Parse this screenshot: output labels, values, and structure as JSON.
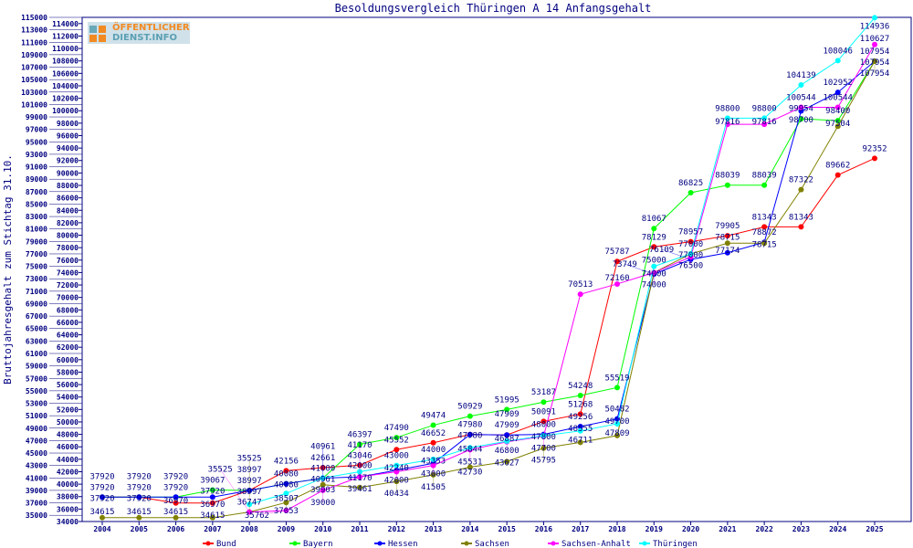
{
  "chart_data": {
    "type": "line",
    "title": "Besoldungsvergleich Thüringen A 14 Anfangsgehalt",
    "xlabel": "",
    "ylabel": "Bruttojahresgehalt zum Stichtag 31.10.",
    "ylim": [
      34000,
      115000
    ],
    "ytick_step": 1000,
    "grid": false,
    "legend_position": "bottom",
    "x": [
      "2004",
      "2005",
      "2006",
      "2007",
      "2008",
      "2009",
      "2010",
      "2011",
      "2012",
      "2013",
      "2014",
      "2015",
      "2016",
      "2017",
      "2018",
      "2019",
      "2020",
      "2021",
      "2022",
      "2023",
      "2024",
      "2025"
    ],
    "series": [
      {
        "name": "Bund",
        "color": "#ff0000",
        "values": [
          37920,
          37920,
          36970,
          36970,
          38997,
          42156,
          42661,
          43046,
          45552,
          46652,
          47980,
          47909,
          50091,
          51268,
          75787,
          78129,
          78957,
          79905,
          81343,
          81343,
          89662,
          92352
        ]
      },
      {
        "name": "Bayern",
        "color": "#00ff00",
        "values": [
          37920,
          37920,
          37920,
          39067,
          38997,
          40080,
          40961,
          46397,
          47490,
          49474,
          50929,
          51995,
          53187,
          54248,
          55519,
          81067,
          86825,
          88039,
          88039,
          98700,
          98400,
          107954
        ]
      },
      {
        "name": "Hessen",
        "color": "#0000ff",
        "values": [
          37920,
          37920,
          37920,
          37920,
          38997,
          40080,
          40961,
          41170,
          42240,
          43353,
          47980,
          47909,
          48000,
          49256,
          50482,
          73749,
          76109,
          77174,
          78872,
          99954,
          102952,
          107954
        ]
      },
      {
        "name": "Sachsen",
        "color": "#808000",
        "values": [
          34615,
          34615,
          34615,
          34615,
          35525,
          37053,
          39903,
          39461,
          40434,
          41505,
          42730,
          43627,
          45795,
          46711,
          47809,
          74000,
          77000,
          78715,
          78715,
          87322,
          97504,
          107954
        ]
      },
      {
        "name": "Sachsen-Anhalt",
        "color": "#ff00ff",
        "values": [
          null,
          null,
          null,
          null,
          35525,
          35762,
          39000,
          41170,
          42000,
          43000,
          45531,
          46800,
          47700,
          70513,
          72160,
          74000,
          76500,
          97816,
          97816,
          100544,
          100544,
          110627
        ]
      },
      {
        "name": "Thüringen",
        "color": "#00ffff",
        "values": [
          null,
          null,
          null,
          null,
          36747,
          38507,
          41000,
          42000,
          43000,
          44000,
          45844,
          46887,
          47800,
          48555,
          49700,
          75000,
          77000,
          98800,
          98800,
          104139,
          108046,
          114936
        ]
      }
    ]
  },
  "logo": {
    "line1": "ÖFFENTLICHER",
    "line2": "DIENST.INFO"
  }
}
